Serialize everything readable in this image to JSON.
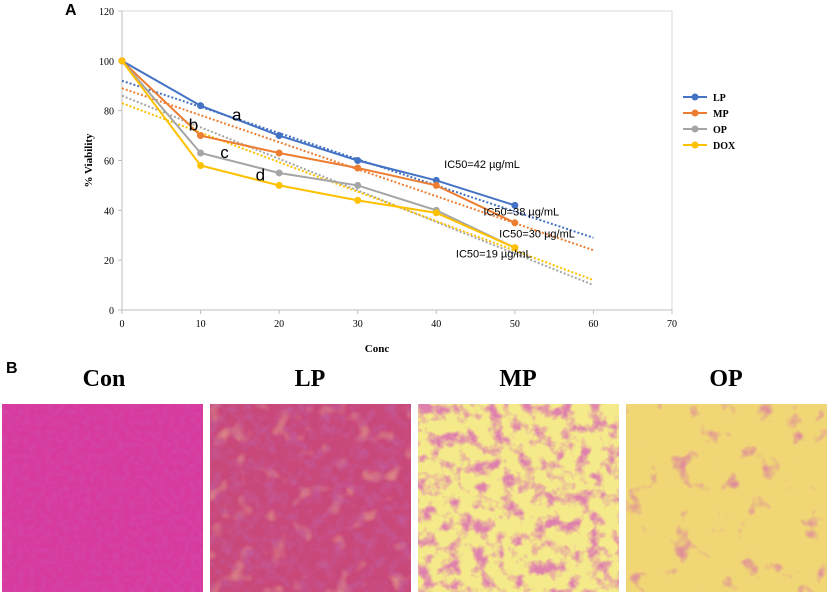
{
  "panel_labels": {
    "a": "A",
    "b": "B"
  },
  "chart_data": {
    "type": "line",
    "xlabel": "Conc",
    "ylabel": "% Viability",
    "xlim": [
      0,
      70
    ],
    "ylim": [
      0,
      120
    ],
    "xticks": [
      0,
      10,
      20,
      30,
      40,
      50,
      60,
      70
    ],
    "yticks": [
      0,
      20,
      40,
      60,
      80,
      100,
      120
    ],
    "grid": false,
    "legend_position": "right",
    "series": [
      {
        "name": "LP",
        "color": "#4472C4",
        "x": [
          0,
          10,
          20,
          30,
          40,
          50
        ],
        "values": [
          100,
          82,
          70,
          60,
          52,
          42
        ],
        "trend": [
          [
            0,
            92
          ],
          [
            60,
            29
          ]
        ]
      },
      {
        "name": "MP",
        "color": "#ED7D31",
        "x": [
          0,
          10,
          20,
          30,
          40,
          50
        ],
        "values": [
          100,
          70,
          63,
          57,
          50,
          35
        ],
        "trend": [
          [
            0,
            89
          ],
          [
            60,
            24
          ]
        ]
      },
      {
        "name": "OP",
        "color": "#A5A5A5",
        "x": [
          0,
          10,
          20,
          30,
          40,
          50
        ],
        "values": [
          100,
          63,
          55,
          50,
          40,
          25
        ],
        "trend": [
          [
            0,
            86
          ],
          [
            60,
            10
          ]
        ]
      },
      {
        "name": "DOX",
        "color": "#FFC000",
        "x": [
          0,
          10,
          20,
          30,
          40,
          50
        ],
        "values": [
          100,
          58,
          50,
          44,
          39,
          25
        ],
        "trend": [
          [
            0,
            83
          ],
          [
            60,
            12
          ]
        ]
      }
    ],
    "annotations": [
      {
        "text": "a",
        "x": 14,
        "y": 76,
        "style": "letter"
      },
      {
        "text": "b",
        "x": 8.5,
        "y": 72,
        "style": "letter"
      },
      {
        "text": "c",
        "x": 12.5,
        "y": 61,
        "style": "letter"
      },
      {
        "text": "d",
        "x": 17,
        "y": 52,
        "style": "letter"
      },
      {
        "text": "IC50=42 µg/mL",
        "x": 41,
        "y": 57,
        "style": "small"
      },
      {
        "text": "IC50=38 µg/mL",
        "x": 46,
        "y": 38,
        "style": "small"
      },
      {
        "text": "IC50=30 µg/mL",
        "x": 48,
        "y": 29,
        "style": "small"
      },
      {
        "text": "IC50=19 µg/mL",
        "x": 42.5,
        "y": 21,
        "style": "small"
      }
    ]
  },
  "micrographs": [
    {
      "label": "Con"
    },
    {
      "label": "LP"
    },
    {
      "label": "MP"
    },
    {
      "label": "OP"
    }
  ]
}
